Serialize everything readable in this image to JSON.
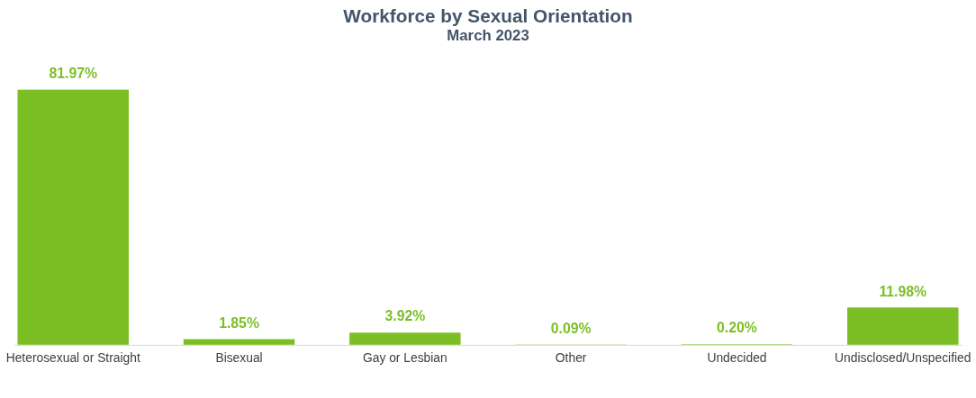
{
  "chart_data": {
    "type": "bar",
    "title": "Workforce by Sexual Orientation",
    "subtitle": "March 2023",
    "categories": [
      "Heterosexual or Straight",
      "Bisexual",
      "Gay or Lesbian",
      "Other",
      "Undecided",
      "Undisclosed/Unspecified"
    ],
    "values": [
      81.97,
      1.85,
      3.92,
      0.09,
      0.2,
      11.98
    ],
    "value_labels": [
      "81.97%",
      "1.85%",
      "3.92%",
      "0.09%",
      "0.20%",
      "11.98%"
    ],
    "color": "#7bbf24",
    "grid": false
  }
}
